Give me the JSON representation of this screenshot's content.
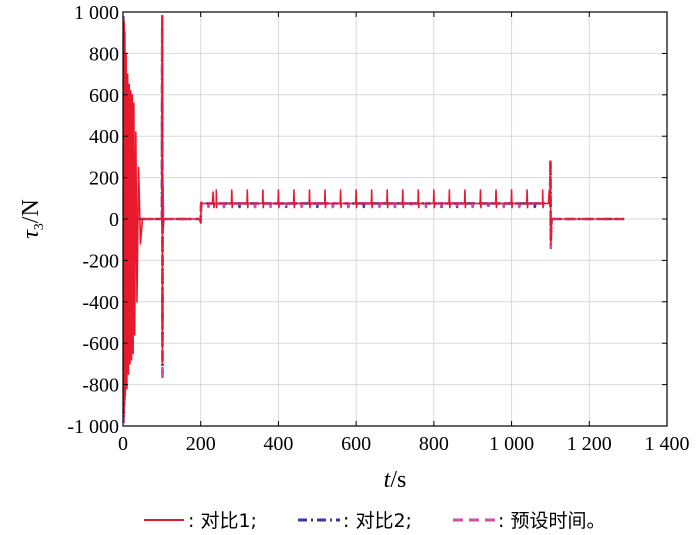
{
  "chart_data": {
    "type": "line",
    "xlabel": "t/s",
    "ylabel": "τ3/N",
    "xlim": [
      0,
      1400
    ],
    "ylim": [
      -1000,
      1000
    ],
    "x_ticks": [
      0,
      200,
      400,
      600,
      800,
      1000,
      1200,
      1400
    ],
    "y_ticks": [
      -1000,
      -800,
      -600,
      -400,
      -200,
      0,
      200,
      400,
      600,
      800,
      1000
    ],
    "x_tick_labels": [
      "0",
      "200",
      "400",
      "600",
      "800",
      "1 000",
      "1 200",
      "1 400"
    ],
    "y_tick_labels": [
      "-1 000",
      "-800",
      "-600",
      "-400",
      "-200",
      "0",
      "200",
      "400",
      "600",
      "800",
      "1 000"
    ],
    "grid": true,
    "legend_position": "bottom",
    "legend_items": [
      ": 对比1;",
      ": 对比2;",
      ": 预设时间。"
    ],
    "series": [
      {
        "color": "#e8192c",
        "dash": "solid",
        "x": [
          0,
          1,
          2,
          3,
          4,
          5,
          6,
          8,
          10,
          12,
          14,
          16,
          18,
          20,
          22,
          24,
          26,
          28,
          30,
          33,
          36,
          40,
          45,
          50,
          100,
          101,
          101.5,
          102,
          103,
          104,
          199,
          200,
          201,
          202,
          203,
          205,
          230,
          232,
          234,
          236,
          238,
          240,
          1080,
          1095,
          1097,
          1099,
          1100,
          1101,
          1103,
          1105,
          1290
        ],
        "y": [
          0,
          950,
          -950,
          950,
          -900,
          900,
          -850,
          800,
          -820,
          700,
          -750,
          650,
          -700,
          620,
          -680,
          600,
          -650,
          560,
          -560,
          420,
          -400,
          250,
          -120,
          0,
          0,
          980,
          -700,
          200,
          -50,
          0,
          0,
          -20,
          80,
          60,
          75,
          75,
          75,
          130,
          55,
          75,
          75,
          75,
          75,
          75,
          140,
          60,
          280,
          -120,
          0,
          0,
          0
        ]
      },
      {
        "color": "#2e3d9f",
        "dash": "dashdot",
        "x": [
          0,
          1,
          2,
          3,
          4,
          5,
          6,
          8,
          10,
          15,
          20,
          30,
          40,
          100,
          101,
          101.5,
          102,
          103,
          104,
          199,
          200,
          201,
          202,
          205,
          1099,
          1100,
          1101,
          1103,
          1290
        ],
        "y": [
          0,
          980,
          -960,
          900,
          -850,
          700,
          -500,
          300,
          -120,
          40,
          -10,
          0,
          0,
          0,
          950,
          -750,
          150,
          -30,
          0,
          0,
          -15,
          70,
          78,
          78,
          78,
          270,
          -100,
          0,
          0
        ]
      },
      {
        "color": "#cc4fa8",
        "dash": "dashed",
        "x": [
          0,
          1,
          2,
          3,
          4,
          5,
          6,
          8,
          10,
          15,
          20,
          30,
          40,
          100,
          101,
          101.5,
          102,
          103,
          104,
          199,
          200,
          201,
          202,
          205,
          1099,
          1100,
          1101,
          1103,
          1290
        ],
        "y": [
          0,
          990,
          -980,
          920,
          -870,
          720,
          -520,
          310,
          -130,
          45,
          -15,
          0,
          0,
          0,
          990,
          -780,
          160,
          -35,
          0,
          0,
          -10,
          72,
          75,
          75,
          75,
          290,
          -140,
          0,
          0
        ]
      }
    ],
    "spike_series_1": {
      "start": 240,
      "step": 40,
      "end": 1080,
      "high": 140,
      "low": 55
    },
    "ripple_series_2_3": {
      "start": 220,
      "step": 40,
      "end": 1080,
      "low": 58
    }
  }
}
